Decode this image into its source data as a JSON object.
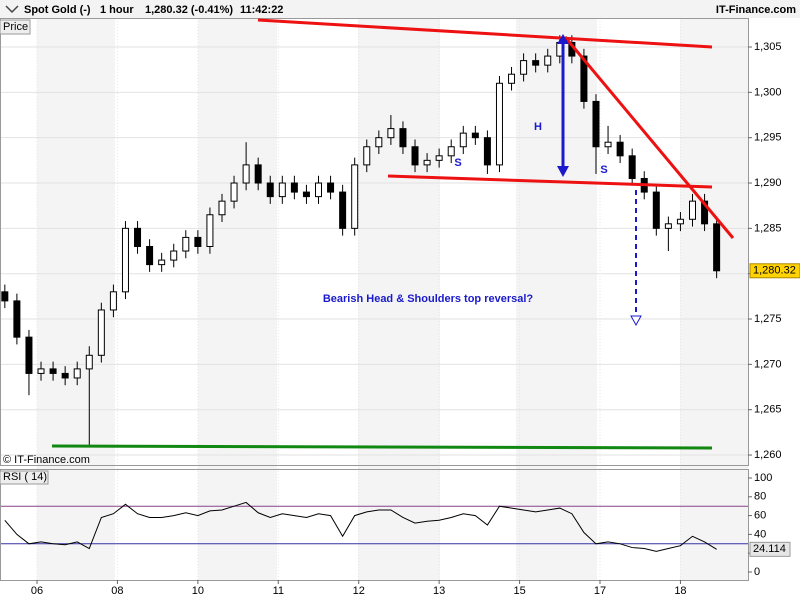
{
  "header": {
    "title": "Spot Gold (-)",
    "interval": "1 hour",
    "last": "1,280.32 (-0.41%)",
    "time": "11:42:22",
    "brand": "IT-Finance.com",
    "panel_label": "Price",
    "copyright": "© IT-Finance.com"
  },
  "chart_data": [
    {
      "type": "candlestick",
      "x": [
        -0.4,
        -0.25,
        -0.1,
        0.05,
        0.2,
        0.35,
        0.5,
        0.65,
        0.8,
        0.95,
        1.1,
        1.25,
        1.4,
        1.55,
        1.7,
        1.85,
        2,
        2.15,
        2.3,
        2.45,
        2.6,
        2.75,
        2.9,
        3.05,
        3.2,
        3.35,
        3.5,
        3.65,
        3.8,
        3.95,
        4.1,
        4.25,
        4.4,
        4.55,
        4.7,
        4.85,
        5,
        5.15,
        5.3,
        5.45,
        5.6,
        5.75,
        5.9,
        6.05,
        6.2,
        6.35,
        6.5,
        6.65,
        6.8,
        6.95,
        7.1,
        7.25,
        7.4,
        7.55,
        7.7,
        7.85,
        8,
        8.15,
        8.3,
        8.45
      ],
      "open": [
        1278,
        1277,
        1273,
        1269,
        1269.5,
        1269,
        1268.5,
        1269.5,
        1271,
        1276,
        1278,
        1285,
        1283,
        1281,
        1281.5,
        1282.5,
        1284,
        1283,
        1286.5,
        1288,
        1290,
        1292,
        1290,
        1288.5,
        1290,
        1289,
        1288.5,
        1290,
        1289,
        1285,
        1292,
        1294,
        1295,
        1296,
        1294,
        1292,
        1292.5,
        1293,
        1294,
        1295.5,
        1295,
        1292,
        1301,
        1302,
        1303.5,
        1303,
        1304,
        1305.5,
        1304,
        1299,
        1294,
        1294.5,
        1293,
        1290.5,
        1289,
        1285,
        1285.5,
        1286,
        1288,
        1285.5
      ],
      "high": [
        1278.8,
        1277.8,
        1273.8,
        1270.3,
        1270.3,
        1269.8,
        1270.3,
        1272,
        1276.8,
        1278.8,
        1285.8,
        1285.8,
        1283.8,
        1282.3,
        1283.3,
        1284.8,
        1284.8,
        1287.3,
        1288.8,
        1290.8,
        1294.5,
        1292.8,
        1290.8,
        1290.8,
        1290.8,
        1289.8,
        1290.8,
        1290.8,
        1289.8,
        1292.8,
        1294.8,
        1295.8,
        1297.5,
        1296.8,
        1294.8,
        1293.3,
        1293.8,
        1294.8,
        1296.3,
        1296.3,
        1295.8,
        1301.8,
        1302.8,
        1304.3,
        1304.3,
        1304.8,
        1306.3,
        1306.3,
        1304.8,
        1299.8,
        1296.3,
        1295.3,
        1293.8,
        1291.3,
        1289.8,
        1286.3,
        1286.8,
        1288.8,
        1288.8,
        1286.3
      ],
      "low": [
        1276.2,
        1272.2,
        1266.6,
        1268.2,
        1268.2,
        1267.7,
        1267.7,
        1261,
        1270.2,
        1275.2,
        1277.2,
        1282.2,
        1280.2,
        1280.2,
        1280.7,
        1281.7,
        1282.2,
        1282.2,
        1285.7,
        1287.2,
        1289.2,
        1289.2,
        1287.7,
        1287.7,
        1288.2,
        1287.7,
        1287.7,
        1288.2,
        1284.2,
        1284.2,
        1291.2,
        1293.2,
        1294.2,
        1293.2,
        1291.2,
        1291.2,
        1291.7,
        1292.2,
        1293.2,
        1294.2,
        1291,
        1291.2,
        1300.2,
        1301.2,
        1302.2,
        1302.2,
        1303.2,
        1303.2,
        1298.2,
        1291,
        1293.2,
        1292.2,
        1289.7,
        1288.2,
        1284.2,
        1282.5,
        1284.7,
        1285.2,
        1284.7,
        1279.5
      ],
      "close": [
        1277,
        1273,
        1269,
        1269.5,
        1269,
        1268.5,
        1269.5,
        1271,
        1276,
        1278,
        1285,
        1283,
        1281,
        1281.5,
        1282.5,
        1284,
        1283,
        1286.5,
        1288,
        1290,
        1292,
        1290,
        1288.5,
        1290,
        1289,
        1288.5,
        1290,
        1289,
        1285,
        1292,
        1294,
        1295,
        1296,
        1294,
        1292,
        1292.5,
        1293,
        1294,
        1295.5,
        1295,
        1292,
        1301,
        1302,
        1303.5,
        1303,
        1304,
        1305.5,
        1304,
        1299,
        1294,
        1294.5,
        1293,
        1290.5,
        1289,
        1285,
        1285.5,
        1286,
        1288,
        1285.5,
        1280.32
      ],
      "last_label": "1,280.32",
      "up_color": "#ffffff",
      "down_color": "#000000",
      "xlim": [
        -0.46,
        8.84
      ],
      "ylim": [
        1258.9,
        1308.2
      ],
      "yticks": [
        {
          "value": 1260,
          "label": "1,260"
        },
        {
          "value": 1265,
          "label": "1,265"
        },
        {
          "value": 1270,
          "label": "1,270"
        },
        {
          "value": 1275,
          "label": "1,275"
        },
        {
          "value": 1280,
          "label": "1,280"
        },
        {
          "value": 1285,
          "label": "1,285"
        },
        {
          "value": 1290,
          "label": "1,290"
        },
        {
          "value": 1295,
          "label": "1,295"
        },
        {
          "value": 1300,
          "label": "1,300"
        },
        {
          "value": 1305,
          "label": "1,305"
        }
      ],
      "grid": true,
      "annotations": [
        "H",
        "S",
        "S",
        "Bearish Head & Shoulders top reversal?"
      ]
    },
    {
      "type": "line",
      "title": "RSI ( 14)",
      "values": [
        55,
        40,
        30,
        32,
        30,
        29,
        32,
        25,
        58,
        62,
        72,
        62,
        58,
        58,
        60,
        63,
        60,
        65,
        66,
        70,
        74,
        63,
        58,
        62,
        60,
        58,
        62,
        60,
        38,
        60,
        64,
        66,
        66,
        58,
        52,
        54,
        55,
        58,
        62,
        60,
        50,
        70,
        68,
        66,
        64,
        66,
        68,
        62,
        42,
        30,
        32,
        30,
        26,
        25,
        22,
        25,
        28,
        38,
        32,
        24.114
      ],
      "last_label": "24.114",
      "color": "#000000",
      "ref_lines": [
        70,
        30
      ],
      "ylim": [
        -8.5,
        108.5
      ],
      "yticks": [
        0,
        20,
        40,
        60,
        80,
        100
      ],
      "xticks": [
        {
          "value": 0,
          "label": "06"
        },
        {
          "value": 1,
          "label": "08"
        },
        {
          "value": 2,
          "label": "10"
        },
        {
          "value": 3,
          "label": "11"
        },
        {
          "value": 4,
          "label": "12"
        },
        {
          "value": 5,
          "label": "13"
        },
        {
          "value": 6,
          "label": "15"
        },
        {
          "value": 7,
          "label": "17"
        },
        {
          "value": 8,
          "label": "18"
        }
      ]
    }
  ]
}
